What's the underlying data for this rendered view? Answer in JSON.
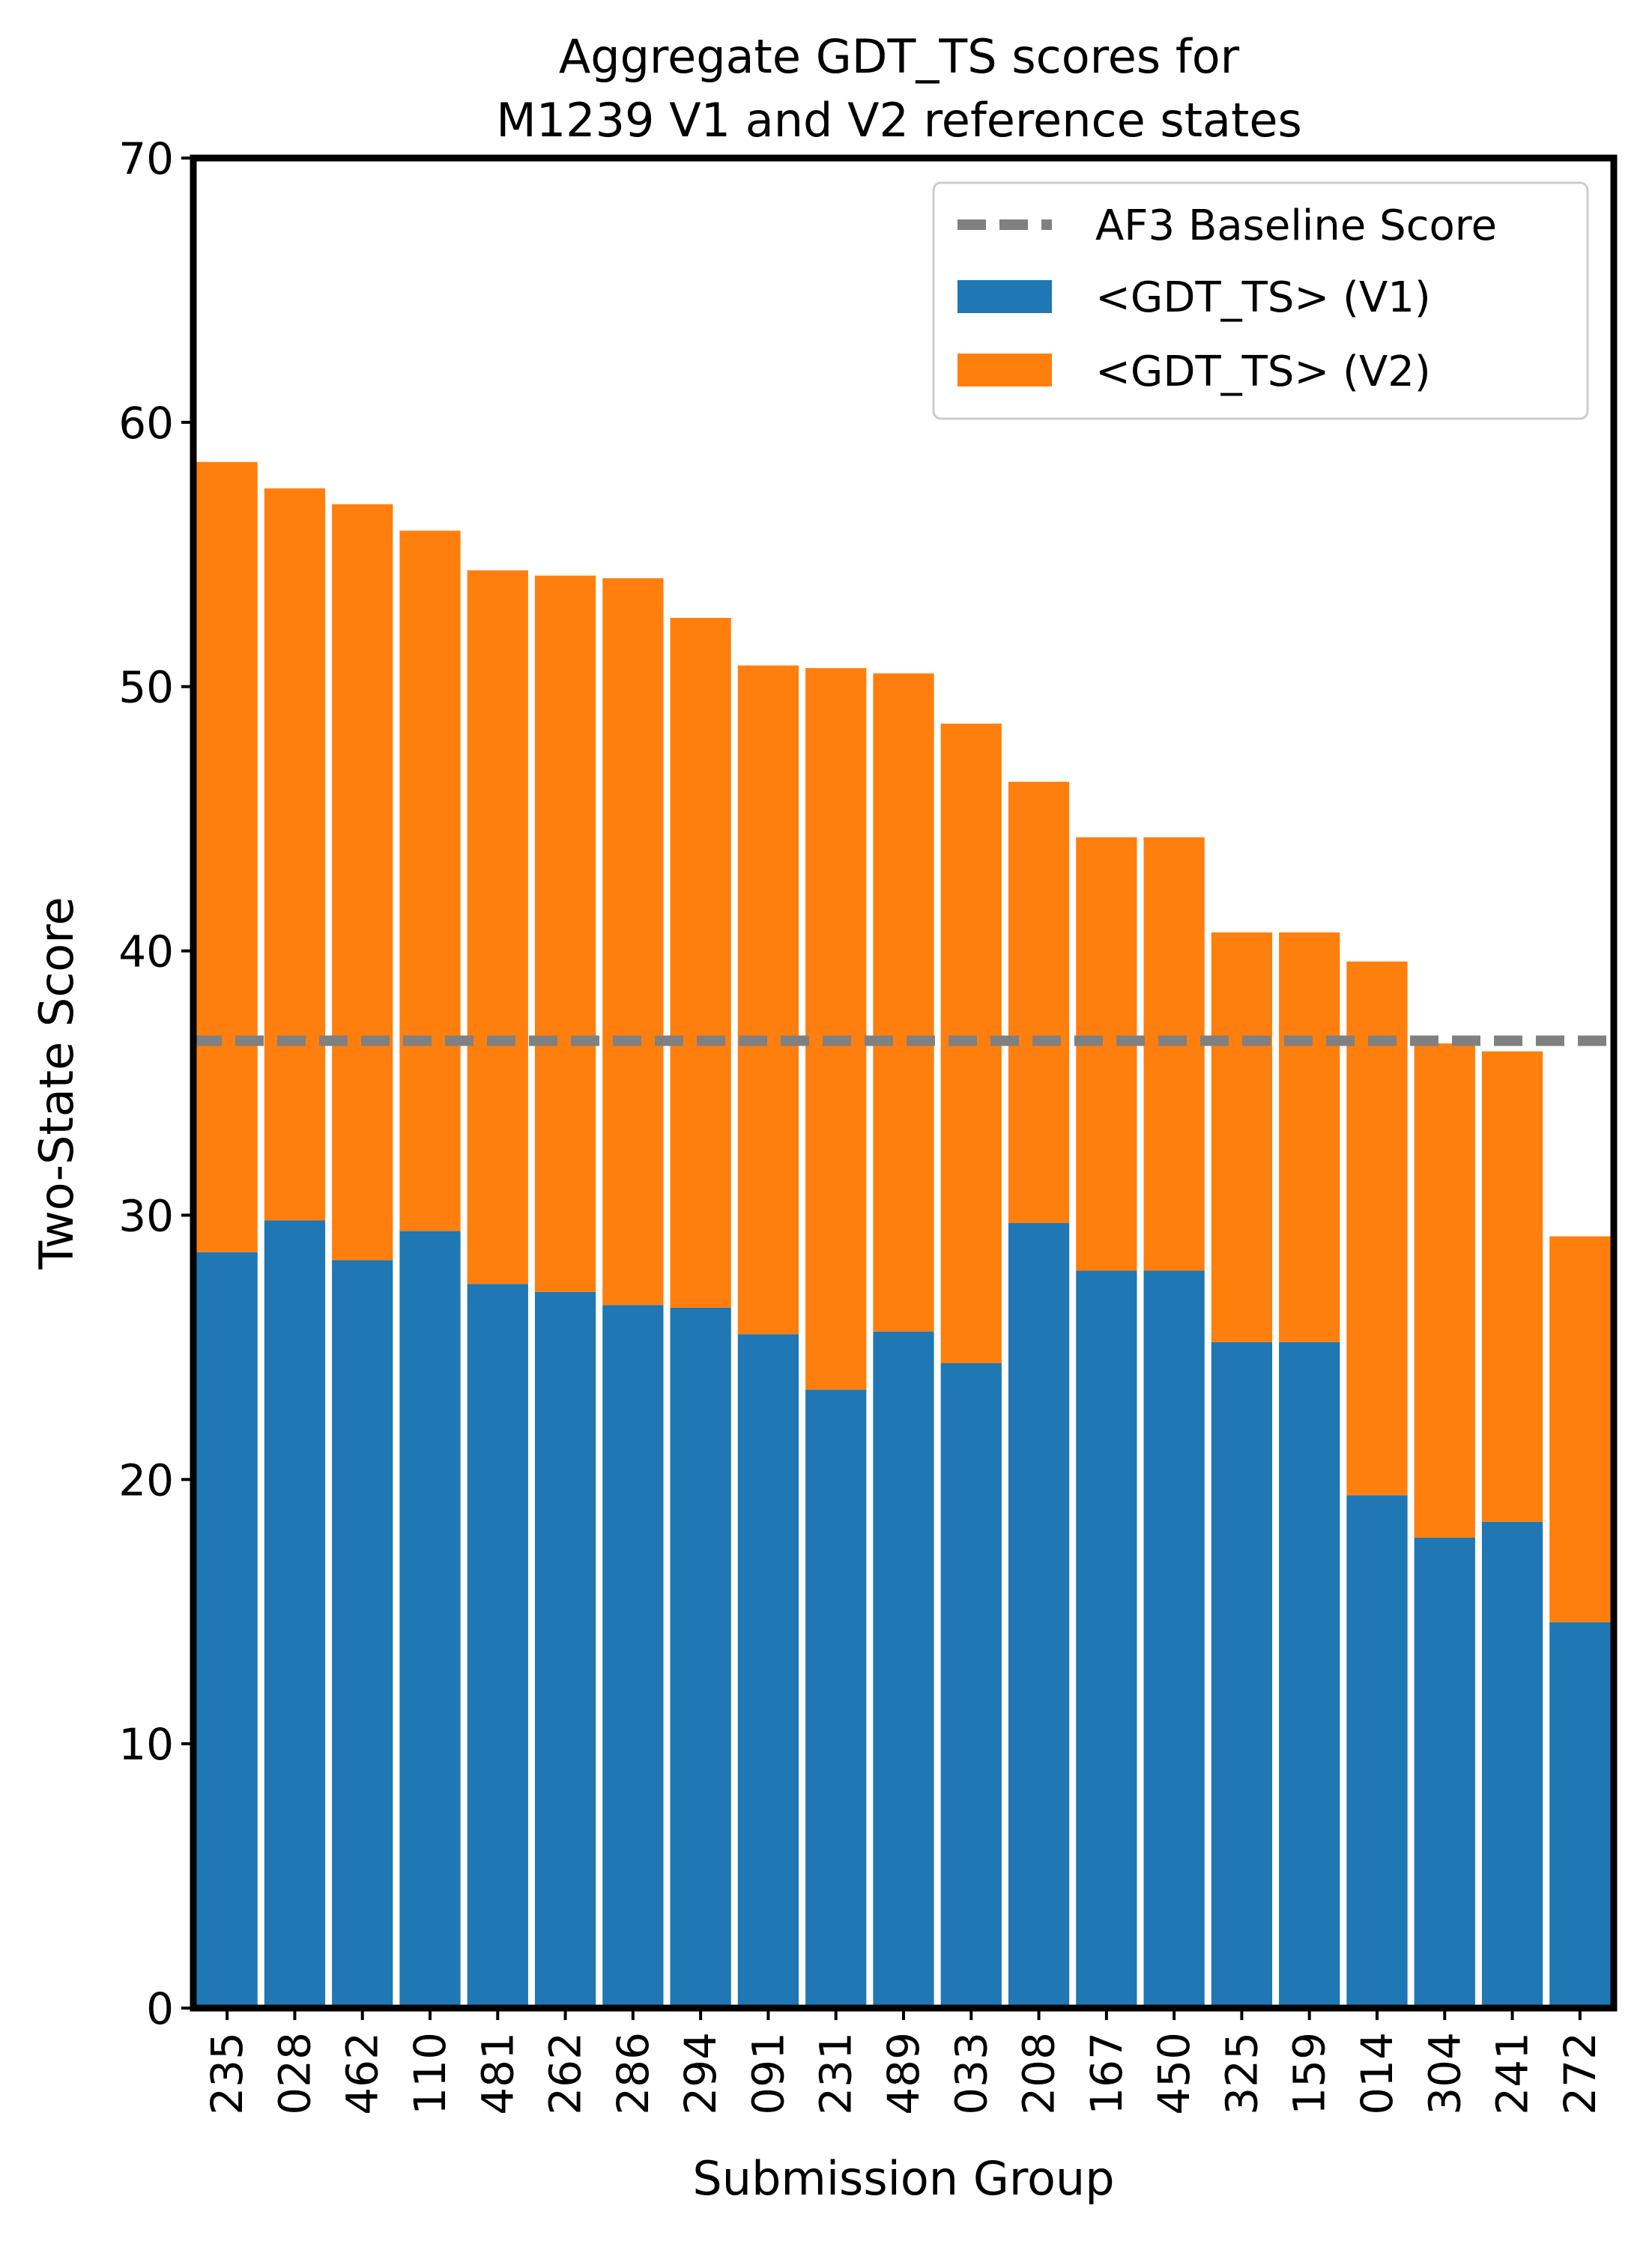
{
  "chart_data": {
    "type": "bar",
    "stacked": true,
    "title_lines": [
      "Aggregate GDT_TS scores for",
      "M1239 V1 and V2 reference states"
    ],
    "xlabel": "Submission Group",
    "ylabel": "Two-State Score",
    "ylim": [
      0,
      70
    ],
    "yticks": [
      "0",
      "10",
      "20",
      "30",
      "40",
      "50",
      "60",
      "70"
    ],
    "grid": false,
    "legend_position": "top-right",
    "categories": [
      "235",
      "028",
      "462",
      "110",
      "481",
      "262",
      "286",
      "294",
      "091",
      "231",
      "489",
      "033",
      "208",
      "167",
      "450",
      "325",
      "159",
      "014",
      "304",
      "241",
      "272"
    ],
    "series": [
      {
        "name": "<GDT_TS> (V1)",
        "color": "#1f77b4",
        "values": [
          28.6,
          29.8,
          28.3,
          29.4,
          27.4,
          27.1,
          26.6,
          26.5,
          25.5,
          23.4,
          25.6,
          24.4,
          29.7,
          27.9,
          27.9,
          25.2,
          25.2,
          19.4,
          17.8,
          18.4,
          14.6
        ]
      },
      {
        "name": "<GDT_TS> (V2)",
        "color": "#ff7f0e",
        "values": [
          29.9,
          27.7,
          28.6,
          26.5,
          27.0,
          27.1,
          27.5,
          26.1,
          25.3,
          27.3,
          24.9,
          24.2,
          16.7,
          16.4,
          16.4,
          15.5,
          15.5,
          20.2,
          18.7,
          17.8,
          14.6
        ]
      }
    ],
    "baseline": {
      "name": "AF3 Baseline Score",
      "value": 36.6,
      "color": "#808080",
      "style": "dashed"
    }
  }
}
